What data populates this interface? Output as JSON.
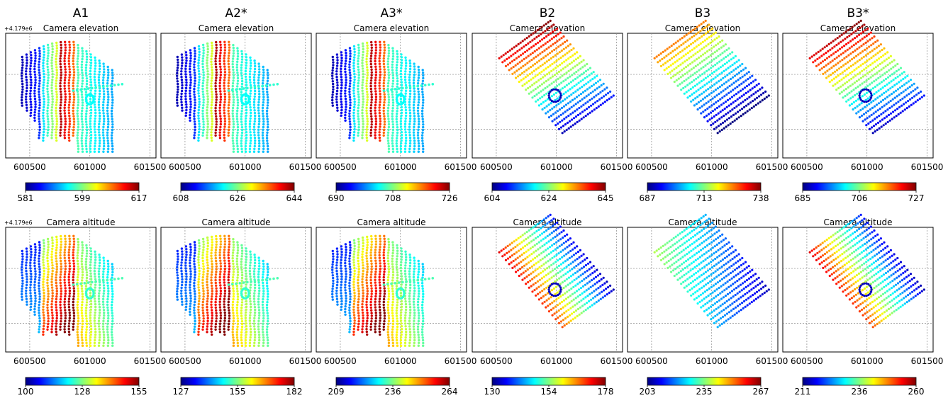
{
  "figure": {
    "offset_label": "+4.179e6",
    "row_titles": [
      "Camera elevation",
      "Camera altitude"
    ]
  },
  "colormap": "jet",
  "chart_data": [
    {
      "type": "scatter",
      "column_label": "A1",
      "title": "Camera elevation",
      "shape": "A",
      "x_ticks": [
        600500,
        601000,
        601500
      ],
      "xlim": [
        600300,
        601550
      ],
      "colorbar": {
        "min": 581,
        "mid": 599,
        "max": 617
      },
      "offset_label": "+4.179e6"
    },
    {
      "type": "scatter",
      "column_label": "A2*",
      "title": "Camera elevation",
      "shape": "A",
      "x_ticks": [
        600500,
        601000,
        601500
      ],
      "xlim": [
        600300,
        601550
      ],
      "colorbar": {
        "min": 608,
        "mid": 626,
        "max": 644
      }
    },
    {
      "type": "scatter",
      "column_label": "A3*",
      "title": "Camera elevation",
      "shape": "A",
      "x_ticks": [
        600500,
        601000,
        601500
      ],
      "xlim": [
        600300,
        601550
      ],
      "colorbar": {
        "min": 690,
        "mid": 708,
        "max": 726
      }
    },
    {
      "type": "scatter",
      "column_label": "B2",
      "title": "Camera elevation",
      "shape": "B",
      "x_ticks": [
        600500,
        601000,
        601500
      ],
      "xlim": [
        600300,
        601550
      ],
      "colorbar": {
        "min": 604,
        "mid": 624,
        "max": 645
      }
    },
    {
      "type": "scatter",
      "column_label": "B3",
      "title": "Camera elevation",
      "shape": "B",
      "x_ticks": [
        600500,
        601000,
        601500
      ],
      "xlim": [
        600300,
        601550
      ],
      "colorbar": {
        "min": 687,
        "mid": 713,
        "max": 738
      }
    },
    {
      "type": "scatter",
      "column_label": "B3*",
      "title": "Camera elevation",
      "shape": "B",
      "x_ticks": [
        600500,
        601000,
        601500
      ],
      "xlim": [
        600300,
        601550
      ],
      "colorbar": {
        "min": 685,
        "mid": 706,
        "max": 727
      }
    },
    {
      "type": "scatter",
      "column_label": "",
      "title": "Camera altitude",
      "shape": "A",
      "x_ticks": [
        600500,
        601000,
        601500
      ],
      "xlim": [
        600300,
        601550
      ],
      "colorbar": {
        "min": 100,
        "mid": 128,
        "max": 155
      },
      "offset_label": "+4.179e6"
    },
    {
      "type": "scatter",
      "column_label": "",
      "title": "Camera altitude",
      "shape": "A",
      "x_ticks": [
        600500,
        601000,
        601500
      ],
      "xlim": [
        600300,
        601550
      ],
      "colorbar": {
        "min": 127,
        "mid": 155,
        "max": 182
      }
    },
    {
      "type": "scatter",
      "column_label": "",
      "title": "Camera altitude",
      "shape": "A",
      "x_ticks": [
        600500,
        601000,
        601500
      ],
      "xlim": [
        600300,
        601550
      ],
      "colorbar": {
        "min": 209,
        "mid": 236,
        "max": 264
      }
    },
    {
      "type": "scatter",
      "column_label": "",
      "title": "Camera altitude",
      "shape": "B",
      "x_ticks": [
        600500,
        601000,
        601500
      ],
      "xlim": [
        600300,
        601550
      ],
      "colorbar": {
        "min": 130,
        "mid": 154,
        "max": 178
      }
    },
    {
      "type": "scatter",
      "column_label": "",
      "title": "Camera altitude",
      "shape": "B",
      "x_ticks": [
        600500,
        601000,
        601500
      ],
      "xlim": [
        600300,
        601550
      ],
      "colorbar": {
        "min": 203,
        "mid": 235,
        "max": 267
      }
    },
    {
      "type": "scatter",
      "column_label": "",
      "title": "Camera altitude",
      "shape": "B",
      "x_ticks": [
        600500,
        601000,
        601500
      ],
      "xlim": [
        600300,
        601550
      ],
      "colorbar": {
        "min": 211,
        "mid": 236,
        "max": 260
      }
    }
  ]
}
